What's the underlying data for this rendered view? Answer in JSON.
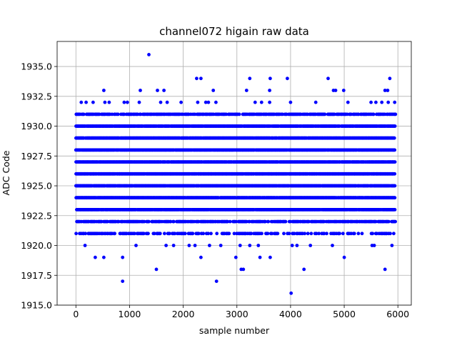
{
  "chart_data": {
    "type": "scatter",
    "title": "channel072 higain raw data",
    "xlabel": "sample number",
    "ylabel": "ADC Code",
    "xlim": [
      -350,
      6250
    ],
    "ylim": [
      1915.0,
      1937.1
    ],
    "x_ticks": [
      0,
      1000,
      2000,
      3000,
      4000,
      5000,
      6000
    ],
    "x_tick_labels": [
      "0",
      "1000",
      "2000",
      "3000",
      "4000",
      "5000",
      "6000"
    ],
    "y_ticks": [
      1915.0,
      1917.5,
      1920.0,
      1922.5,
      1925.0,
      1927.5,
      1930.0,
      1932.5,
      1935.0
    ],
    "y_tick_labels": [
      "1915.0",
      "1917.5",
      "1920.0",
      "1922.5",
      "1925.0",
      "1927.5",
      "1930.0",
      "1932.5",
      "1935.0"
    ],
    "grid": true,
    "marker_color": "#0000ff",
    "x_range": [
      0,
      5950
    ],
    "dense_levels": [
      1923,
      1924,
      1925,
      1926,
      1927,
      1928,
      1929,
      1930
    ],
    "medium_levels": [
      1922,
      1931
    ],
    "sparse_levels": [
      1921
    ],
    "outliers": [
      {
        "x": 1360,
        "y": 1936
      },
      {
        "x": 2250,
        "y": 1934
      },
      {
        "x": 2330,
        "y": 1934
      },
      {
        "x": 3240,
        "y": 1934
      },
      {
        "x": 3620,
        "y": 1934
      },
      {
        "x": 3940,
        "y": 1934
      },
      {
        "x": 4700,
        "y": 1934
      },
      {
        "x": 5850,
        "y": 1934
      },
      {
        "x": 520,
        "y": 1933
      },
      {
        "x": 1200,
        "y": 1933
      },
      {
        "x": 1520,
        "y": 1933
      },
      {
        "x": 1640,
        "y": 1933
      },
      {
        "x": 2560,
        "y": 1933
      },
      {
        "x": 3180,
        "y": 1933
      },
      {
        "x": 3610,
        "y": 1933
      },
      {
        "x": 4800,
        "y": 1933
      },
      {
        "x": 4840,
        "y": 1933
      },
      {
        "x": 4990,
        "y": 1933
      },
      {
        "x": 5760,
        "y": 1933
      },
      {
        "x": 5810,
        "y": 1933
      },
      {
        "x": 100,
        "y": 1932
      },
      {
        "x": 190,
        "y": 1932
      },
      {
        "x": 320,
        "y": 1932
      },
      {
        "x": 540,
        "y": 1932
      },
      {
        "x": 620,
        "y": 1932
      },
      {
        "x": 900,
        "y": 1932
      },
      {
        "x": 960,
        "y": 1932
      },
      {
        "x": 1180,
        "y": 1932
      },
      {
        "x": 1580,
        "y": 1932
      },
      {
        "x": 1700,
        "y": 1932
      },
      {
        "x": 1960,
        "y": 1932
      },
      {
        "x": 2270,
        "y": 1932
      },
      {
        "x": 2420,
        "y": 1932
      },
      {
        "x": 2470,
        "y": 1932
      },
      {
        "x": 2610,
        "y": 1932
      },
      {
        "x": 3340,
        "y": 1932
      },
      {
        "x": 3460,
        "y": 1932
      },
      {
        "x": 3610,
        "y": 1932
      },
      {
        "x": 4000,
        "y": 1932
      },
      {
        "x": 4470,
        "y": 1932
      },
      {
        "x": 5070,
        "y": 1932
      },
      {
        "x": 5500,
        "y": 1932
      },
      {
        "x": 5590,
        "y": 1932
      },
      {
        "x": 5700,
        "y": 1932
      },
      {
        "x": 5820,
        "y": 1932
      },
      {
        "x": 5940,
        "y": 1932
      },
      {
        "x": 170,
        "y": 1920
      },
      {
        "x": 1120,
        "y": 1920
      },
      {
        "x": 1680,
        "y": 1920
      },
      {
        "x": 1820,
        "y": 1920
      },
      {
        "x": 2110,
        "y": 1920
      },
      {
        "x": 2220,
        "y": 1920
      },
      {
        "x": 2490,
        "y": 1920
      },
      {
        "x": 2700,
        "y": 1920
      },
      {
        "x": 3060,
        "y": 1920
      },
      {
        "x": 3240,
        "y": 1920
      },
      {
        "x": 3400,
        "y": 1920
      },
      {
        "x": 4030,
        "y": 1920
      },
      {
        "x": 4120,
        "y": 1920
      },
      {
        "x": 4370,
        "y": 1920
      },
      {
        "x": 4780,
        "y": 1920
      },
      {
        "x": 5520,
        "y": 1920
      },
      {
        "x": 5560,
        "y": 1920
      },
      {
        "x": 5890,
        "y": 1920
      },
      {
        "x": 360,
        "y": 1919
      },
      {
        "x": 520,
        "y": 1919
      },
      {
        "x": 870,
        "y": 1919
      },
      {
        "x": 2330,
        "y": 1919
      },
      {
        "x": 2980,
        "y": 1919
      },
      {
        "x": 3430,
        "y": 1919
      },
      {
        "x": 3620,
        "y": 1919
      },
      {
        "x": 5000,
        "y": 1919
      },
      {
        "x": 1500,
        "y": 1918
      },
      {
        "x": 3080,
        "y": 1918
      },
      {
        "x": 3120,
        "y": 1918
      },
      {
        "x": 4250,
        "y": 1918
      },
      {
        "x": 5760,
        "y": 1918
      },
      {
        "x": 870,
        "y": 1917
      },
      {
        "x": 2620,
        "y": 1917
      },
      {
        "x": 4010,
        "y": 1916
      }
    ]
  }
}
